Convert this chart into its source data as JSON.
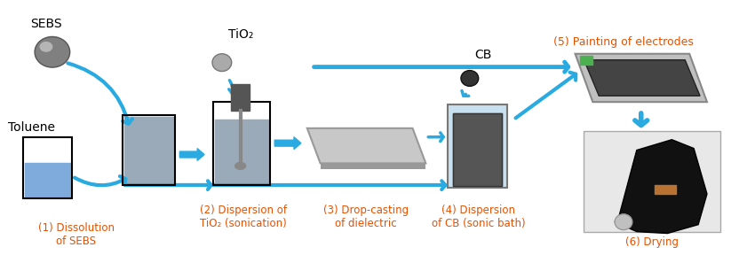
{
  "bg_color": "#ffffff",
  "arrow_color": "#2196F3",
  "arrow_color_dark": "#1565C0",
  "text_color_dark": "#1a237e",
  "text_color_orange": "#e65100",
  "labels": {
    "sebs": "SEBS",
    "toluene": "Toluene",
    "tio2": "TiO₂",
    "cb": "CB",
    "step1": "(1) Dissolution\nof SEBS",
    "step2": "(2) Dispersion of\nTiO₂ (sonication)",
    "step3": "(3) Drop-casting\nof dielectric",
    "step4": "(4) Dispersion\nof CB (sonic bath)",
    "step5": "(5) Painting of electrodes",
    "step6": "(6) Drying"
  },
  "figsize": [
    8.41,
    2.88
  ],
  "dpi": 100
}
